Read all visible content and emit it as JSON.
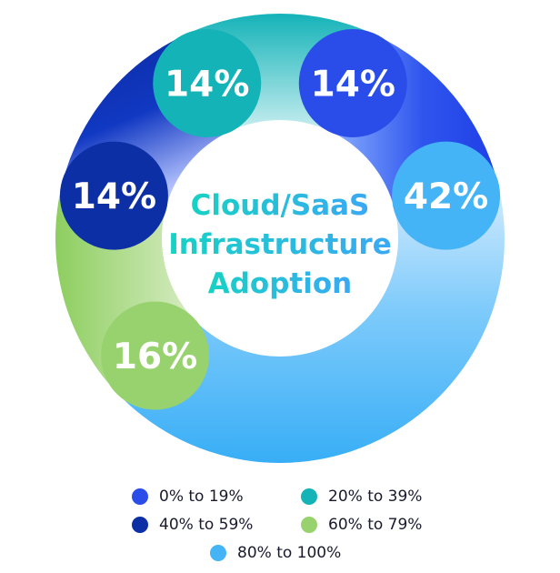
{
  "chart_data": {
    "type": "pie",
    "title": "Cloud/SaaS Infrastructure Adoption",
    "title_lines": [
      "Cloud/SaaS",
      "Infrastructure",
      "Adoption"
    ],
    "categories": [
      "0% to 19%",
      "20% to 39%",
      "40% to 59%",
      "60% to 79%",
      "80% to 100%"
    ],
    "values": [
      14,
      14,
      14,
      16,
      42
    ],
    "value_labels": [
      "14%",
      "14%",
      "14%",
      "16%",
      "42%"
    ],
    "colors": [
      "#2a4dea",
      "#14b3b8",
      "#0c2fa6",
      "#98d26e",
      "#44b4f7"
    ],
    "legend_position": "bottom"
  }
}
